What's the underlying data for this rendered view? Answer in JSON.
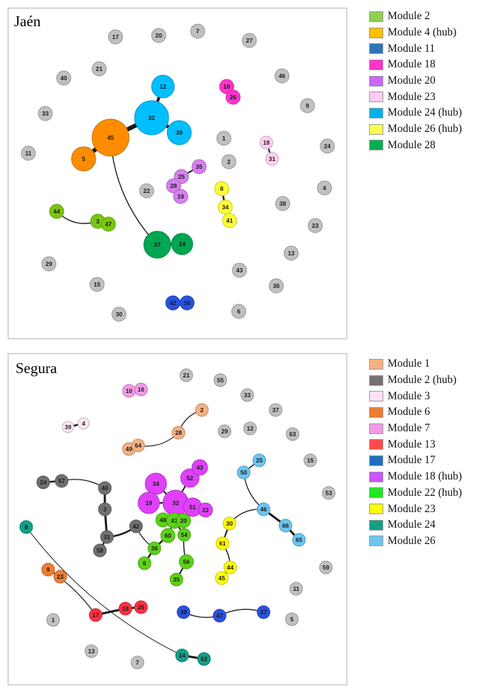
{
  "panels": [
    {
      "id": "jaen",
      "title": "Jaén",
      "legend": [
        {
          "label": "Module 2",
          "color": "#8fd14f"
        },
        {
          "label": "Module 4 (hub)",
          "color": "#ffc000"
        },
        {
          "label": "Module 11",
          "color": "#2e75b6"
        },
        {
          "label": "Module 18",
          "color": "#ff33cc"
        },
        {
          "label": "Module 20",
          "color": "#cc66ff"
        },
        {
          "label": "Module 23",
          "color": "#ffccf2"
        },
        {
          "label": "Module 24 (hub)",
          "color": "#00b0f0"
        },
        {
          "label": "Module 26 (hub)",
          "color": "#ffff4d"
        },
        {
          "label": "Module 28",
          "color": "#00b050"
        }
      ],
      "nodes": [
        {
          "id": "45",
          "color": "#ff8c00"
        },
        {
          "id": "5",
          "color": "#ff8c00"
        },
        {
          "id": "32",
          "color": "#00bfff"
        },
        {
          "id": "12",
          "color": "#00bfff"
        },
        {
          "id": "39",
          "color": "#00bfff"
        },
        {
          "id": "37",
          "color": "#00a651"
        },
        {
          "id": "14",
          "color": "#00a651"
        },
        {
          "id": "44",
          "color": "#7ac70c"
        },
        {
          "id": "3",
          "color": "#7ac70c"
        },
        {
          "id": "47",
          "color": "#7ac70c"
        },
        {
          "id": "25",
          "color": "#d580ef"
        },
        {
          "id": "35",
          "color": "#d580ef"
        },
        {
          "id": "28",
          "color": "#d580ef"
        },
        {
          "id": "19",
          "color": "#d580ef"
        },
        {
          "id": "10",
          "color": "#ff33cc"
        },
        {
          "id": "26",
          "color": "#ff33cc"
        },
        {
          "id": "18",
          "color": "#ffd1f0"
        },
        {
          "id": "31",
          "color": "#ffd1f0"
        },
        {
          "id": "8",
          "color": "#ffff33"
        },
        {
          "id": "34",
          "color": "#ffff33"
        },
        {
          "id": "41",
          "color": "#ffff33"
        },
        {
          "id": "42",
          "color": "#2a52e0"
        },
        {
          "id": "16",
          "color": "#2a52e0"
        },
        {
          "id": "17",
          "color": "#c0c0c0"
        },
        {
          "id": "20",
          "color": "#c0c0c0"
        },
        {
          "id": "7",
          "color": "#c0c0c0"
        },
        {
          "id": "27",
          "color": "#c0c0c0"
        },
        {
          "id": "40",
          "color": "#c0c0c0"
        },
        {
          "id": "21",
          "color": "#c0c0c0"
        },
        {
          "id": "46",
          "color": "#c0c0c0"
        },
        {
          "id": "9",
          "color": "#c0c0c0"
        },
        {
          "id": "33",
          "color": "#c0c0c0"
        },
        {
          "id": "1",
          "color": "#c0c0c0"
        },
        {
          "id": "24",
          "color": "#c0c0c0"
        },
        {
          "id": "11",
          "color": "#c0c0c0"
        },
        {
          "id": "2",
          "color": "#c0c0c0"
        },
        {
          "id": "22",
          "color": "#c0c0c0"
        },
        {
          "id": "4",
          "color": "#c0c0c0"
        },
        {
          "id": "38",
          "color": "#c0c0c0"
        },
        {
          "id": "23",
          "color": "#c0c0c0"
        },
        {
          "id": "29",
          "color": "#c0c0c0"
        },
        {
          "id": "13",
          "color": "#c0c0c0"
        },
        {
          "id": "43",
          "color": "#c0c0c0"
        },
        {
          "id": "15",
          "color": "#c0c0c0"
        },
        {
          "id": "36",
          "color": "#c0c0c0"
        },
        {
          "id": "30",
          "color": "#c0c0c0"
        },
        {
          "id": "6",
          "color": "#c0c0c0"
        }
      ],
      "edges": [
        {
          "source": "45",
          "target": "32"
        },
        {
          "source": "45",
          "target": "5"
        },
        {
          "source": "32",
          "target": "12"
        },
        {
          "source": "32",
          "target": "39"
        },
        {
          "source": "45",
          "target": "37"
        },
        {
          "source": "37",
          "target": "14"
        },
        {
          "source": "44",
          "target": "3"
        },
        {
          "source": "3",
          "target": "47"
        },
        {
          "source": "25",
          "target": "35"
        },
        {
          "source": "25",
          "target": "28"
        },
        {
          "source": "28",
          "target": "19"
        },
        {
          "source": "10",
          "target": "26"
        },
        {
          "source": "18",
          "target": "31"
        },
        {
          "source": "8",
          "target": "34"
        },
        {
          "source": "34",
          "target": "41"
        },
        {
          "source": "42",
          "target": "16"
        }
      ]
    },
    {
      "id": "segura",
      "title": "Segura",
      "legend": [
        {
          "label": "Module 1",
          "color": "#f4b183"
        },
        {
          "label": "Module 2 (hub)",
          "color": "#767171"
        },
        {
          "label": "Module 3",
          "color": "#ffe0f4"
        },
        {
          "label": "Module 6",
          "color": "#ed7d31"
        },
        {
          "label": "Module 7",
          "color": "#f39ae8"
        },
        {
          "label": "Module 13",
          "color": "#ff4b4b"
        },
        {
          "label": "Module 17",
          "color": "#1f6fbf"
        },
        {
          "label": "Module 18 (hub)",
          "color": "#cc55ff"
        },
        {
          "label": "Module 22 (hub)",
          "color": "#22e822"
        },
        {
          "label": "Module 23",
          "color": "#ffff00"
        },
        {
          "label": "Module 24",
          "color": "#139f87"
        },
        {
          "label": "Module 26",
          "color": "#6ac6f0"
        }
      ],
      "nodes": [
        {
          "id": "21",
          "color": "#c0c0c0"
        },
        {
          "id": "55",
          "color": "#c0c0c0"
        },
        {
          "id": "33",
          "color": "#c0c0c0"
        },
        {
          "id": "37",
          "color": "#c0c0c0"
        },
        {
          "id": "29",
          "color": "#c0c0c0"
        },
        {
          "id": "12",
          "color": "#c0c0c0"
        },
        {
          "id": "63",
          "color": "#c0c0c0"
        },
        {
          "id": "15",
          "color": "#c0c0c0"
        },
        {
          "id": "53",
          "color": "#c0c0c0"
        },
        {
          "id": "59",
          "color": "#c0c0c0"
        },
        {
          "id": "11",
          "color": "#c0c0c0"
        },
        {
          "id": "5",
          "color": "#c0c0c0"
        },
        {
          "id": "1",
          "color": "#c0c0c0"
        },
        {
          "id": "13",
          "color": "#c0c0c0"
        },
        {
          "id": "7",
          "color": "#c0c0c0"
        },
        {
          "id": "10",
          "color": "#f39ae8"
        },
        {
          "id": "16",
          "color": "#f39ae8"
        },
        {
          "id": "39",
          "color": "#ffe6f5"
        },
        {
          "id": "4",
          "color": "#ffe6f5"
        },
        {
          "id": "2",
          "color": "#f4b183"
        },
        {
          "id": "28",
          "color": "#f4b183"
        },
        {
          "id": "49",
          "color": "#f4b183"
        },
        {
          "id": "64",
          "color": "#f4b183"
        },
        {
          "id": "24",
          "color": "#707070"
        },
        {
          "id": "57",
          "color": "#707070"
        },
        {
          "id": "40",
          "color": "#707070"
        },
        {
          "id": "3",
          "color": "#707070"
        },
        {
          "id": "31",
          "color": "#707070"
        },
        {
          "id": "42",
          "color": "#707070"
        },
        {
          "id": "58",
          "color": "#707070"
        },
        {
          "id": "34",
          "color": "#e040fb"
        },
        {
          "id": "19",
          "color": "#e040fb"
        },
        {
          "id": "32",
          "color": "#e040fb"
        },
        {
          "id": "51",
          "color": "#e040fb"
        },
        {
          "id": "52",
          "color": "#e040fb"
        },
        {
          "id": "43",
          "color": "#e040fb"
        },
        {
          "id": "22",
          "color": "#e040fb"
        },
        {
          "id": "48",
          "color": "#5ed11a"
        },
        {
          "id": "41",
          "color": "#5ed11a"
        },
        {
          "id": "20",
          "color": "#5ed11a"
        },
        {
          "id": "60",
          "color": "#5ed11a"
        },
        {
          "id": "54",
          "color": "#5ed11a"
        },
        {
          "id": "36",
          "color": "#5ed11a"
        },
        {
          "id": "6",
          "color": "#5ed11a"
        },
        {
          "id": "56",
          "color": "#5ed11a"
        },
        {
          "id": "35",
          "color": "#5ed11a"
        },
        {
          "id": "30",
          "color": "#ffff00"
        },
        {
          "id": "61",
          "color": "#ffff00"
        },
        {
          "id": "44",
          "color": "#ffff00"
        },
        {
          "id": "45",
          "color": "#ffff00"
        },
        {
          "id": "25",
          "color": "#6ac6f0"
        },
        {
          "id": "50",
          "color": "#6ac6f0"
        },
        {
          "id": "46",
          "color": "#6ac6f0"
        },
        {
          "id": "66",
          "color": "#6ac6f0"
        },
        {
          "id": "65",
          "color": "#6ac6f0"
        },
        {
          "id": "8",
          "color": "#139f87"
        },
        {
          "id": "14",
          "color": "#139f87"
        },
        {
          "id": "62",
          "color": "#139f87"
        },
        {
          "id": "9",
          "color": "#ed7d31"
        },
        {
          "id": "23",
          "color": "#ed7d31"
        },
        {
          "id": "17",
          "color": "#ff3040"
        },
        {
          "id": "18",
          "color": "#ff3040"
        },
        {
          "id": "26",
          "color": "#ff3040"
        },
        {
          "id": "38",
          "color": "#2a52e0"
        },
        {
          "id": "47",
          "color": "#2a52e0"
        },
        {
          "id": "27",
          "color": "#2a52e0"
        }
      ],
      "edges": [
        {
          "source": "10",
          "target": "16"
        },
        {
          "source": "39",
          "target": "4"
        },
        {
          "source": "2",
          "target": "28"
        },
        {
          "source": "28",
          "target": "64"
        },
        {
          "source": "64",
          "target": "49"
        },
        {
          "source": "24",
          "target": "57"
        },
        {
          "source": "57",
          "target": "40"
        },
        {
          "source": "40",
          "target": "3"
        },
        {
          "source": "3",
          "target": "31"
        },
        {
          "source": "31",
          "target": "58"
        },
        {
          "source": "31",
          "target": "42"
        },
        {
          "source": "42",
          "target": "36"
        },
        {
          "source": "34",
          "target": "32"
        },
        {
          "source": "19",
          "target": "32"
        },
        {
          "source": "52",
          "target": "32"
        },
        {
          "source": "43",
          "target": "52"
        },
        {
          "source": "51",
          "target": "32"
        },
        {
          "source": "22",
          "target": "51"
        },
        {
          "source": "32",
          "target": "41"
        },
        {
          "source": "48",
          "target": "41"
        },
        {
          "source": "20",
          "target": "41"
        },
        {
          "source": "41",
          "target": "60"
        },
        {
          "source": "41",
          "target": "54"
        },
        {
          "source": "60",
          "target": "36"
        },
        {
          "source": "36",
          "target": "6"
        },
        {
          "source": "54",
          "target": "56"
        },
        {
          "source": "56",
          "target": "35"
        },
        {
          "source": "30",
          "target": "61"
        },
        {
          "source": "61",
          "target": "44"
        },
        {
          "source": "44",
          "target": "45"
        },
        {
          "source": "30",
          "target": "46"
        },
        {
          "source": "25",
          "target": "50"
        },
        {
          "source": "50",
          "target": "46"
        },
        {
          "source": "46",
          "target": "66"
        },
        {
          "source": "66",
          "target": "65"
        },
        {
          "source": "8",
          "target": "14"
        },
        {
          "source": "14",
          "target": "62"
        },
        {
          "source": "9",
          "target": "23"
        },
        {
          "source": "9",
          "target": "17"
        },
        {
          "source": "17",
          "target": "18"
        },
        {
          "source": "18",
          "target": "26"
        },
        {
          "source": "38",
          "target": "47"
        },
        {
          "source": "47",
          "target": "27"
        }
      ]
    }
  ]
}
